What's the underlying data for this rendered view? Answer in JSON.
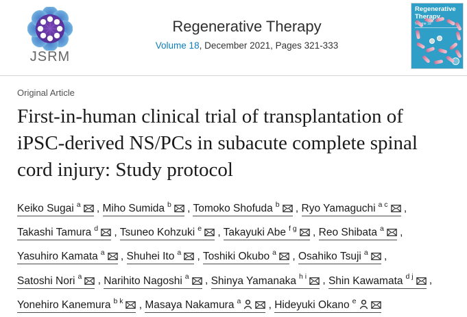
{
  "header": {
    "logo": {
      "label": "JSRM"
    },
    "journal_title": "Regenerative Therapy",
    "issue": {
      "volume_link": "Volume 18",
      "rest": ", December 2021, Pages 321-333"
    },
    "cover": {
      "title": "Regenerative Therapy",
      "volume": "Volume 18"
    }
  },
  "article": {
    "category": "Original Article",
    "title": "First-in-human clinical trial of transplantation of iPSC-derived NS/PCs in subacute complete spinal cord injury: Study protocol"
  },
  "authors": [
    {
      "name": "Keiko Sugai",
      "sup": "a",
      "mail": true,
      "person": false
    },
    {
      "name": "Miho Sumida",
      "sup": "b",
      "mail": true,
      "person": false
    },
    {
      "name": "Tomoko Shofuda",
      "sup": "b",
      "mail": true,
      "person": false
    },
    {
      "name": "Ryo Yamaguchi",
      "sup": "a c",
      "mail": true,
      "person": false
    },
    {
      "name": "Takashi Tamura",
      "sup": "d",
      "mail": true,
      "person": false
    },
    {
      "name": "Tsuneo Kohzuki",
      "sup": "e",
      "mail": true,
      "person": false
    },
    {
      "name": "Takayuki Abe",
      "sup": "f g",
      "mail": true,
      "person": false
    },
    {
      "name": "Reo Shibata",
      "sup": "a",
      "mail": true,
      "person": false
    },
    {
      "name": "Yasuhiro Kamata",
      "sup": "a",
      "mail": true,
      "person": false
    },
    {
      "name": "Shuhei Ito",
      "sup": "a",
      "mail": true,
      "person": false
    },
    {
      "name": "Toshiki Okubo",
      "sup": "a",
      "mail": true,
      "person": false
    },
    {
      "name": "Osahiko Tsuji",
      "sup": "a",
      "mail": true,
      "person": false
    },
    {
      "name": "Satoshi Nori",
      "sup": "a",
      "mail": true,
      "person": false
    },
    {
      "name": "Narihito Nagoshi",
      "sup": "a",
      "mail": true,
      "person": false
    },
    {
      "name": "Shinya Yamanaka",
      "sup": "h i",
      "mail": true,
      "person": false
    },
    {
      "name": "Shin Kawamata",
      "sup": "d j",
      "mail": true,
      "person": false
    },
    {
      "name": "Yonehiro Kanemura",
      "sup": "b k",
      "mail": true,
      "person": false
    },
    {
      "name": "Masaya Nakamura",
      "sup": "a",
      "mail": true,
      "person": true
    },
    {
      "name": "Hideyuki Okano",
      "sup": "e",
      "mail": true,
      "person": true
    }
  ],
  "icons": {
    "mail": "email-envelope-icon",
    "person": "author-profile-icon",
    "logo": "jsrm-flower-logo"
  },
  "colors": {
    "link_blue": "#0c7dba",
    "cover_teal": "#2f9fc7",
    "pill_pink": "#e8a2b6",
    "logo_purple": "#5b34a2",
    "logo_blue": "#5f9fd6",
    "divider": "#d4d4d4"
  }
}
